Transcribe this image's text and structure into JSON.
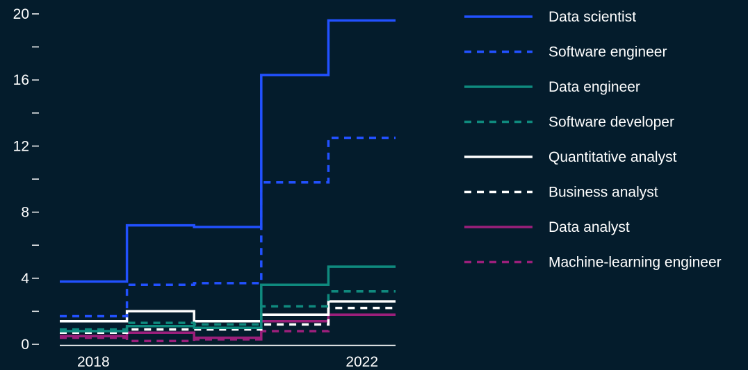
{
  "colors": {
    "background": "#041c2c",
    "blue": "#2251ff",
    "teal": "#0f8a7e",
    "white": "#ffffff",
    "magenta": "#9b1f7b"
  },
  "chart_data": {
    "type": "line",
    "step": true,
    "x": [
      2018,
      2019,
      2020,
      2021,
      2022
    ],
    "x_ticks": [
      "2018",
      "2022"
    ],
    "ylim": [
      0,
      20
    ],
    "y_ticks": [
      "0",
      "",
      "4",
      "",
      "8",
      "",
      "12",
      "",
      "16",
      "",
      "20"
    ],
    "grid": false,
    "legend_position": "right",
    "series": [
      {
        "name": "Data scientist",
        "color": "#2251ff",
        "dash": "solid",
        "values": [
          3.8,
          7.2,
          7.1,
          16.3,
          19.6
        ]
      },
      {
        "name": "Software engineer",
        "color": "#2251ff",
        "dash": "dashed",
        "values": [
          1.7,
          3.6,
          3.7,
          9.8,
          12.5
        ]
      },
      {
        "name": "Data engineer",
        "color": "#0f8a7e",
        "dash": "solid",
        "values": [
          0.8,
          1.1,
          1.0,
          3.6,
          4.7
        ]
      },
      {
        "name": "Software developer",
        "color": "#0f8a7e",
        "dash": "dashed",
        "values": [
          0.9,
          1.3,
          1.2,
          2.3,
          3.2
        ]
      },
      {
        "name": "Quantitative analyst",
        "color": "#ffffff",
        "dash": "solid",
        "values": [
          1.4,
          2.0,
          1.4,
          1.8,
          2.6
        ]
      },
      {
        "name": "Business analyst",
        "color": "#ffffff",
        "dash": "dashed",
        "values": [
          0.7,
          0.9,
          0.9,
          1.2,
          2.2
        ]
      },
      {
        "name": "Data analyst",
        "color": "#9b1f7b",
        "dash": "solid",
        "values": [
          0.5,
          0.7,
          0.4,
          1.4,
          1.8
        ]
      },
      {
        "name": "Machine-learning engineer",
        "color": "#9b1f7b",
        "dash": "dashed",
        "values": [
          0.4,
          0.2,
          0.3,
          0.8,
          1.8
        ]
      }
    ]
  }
}
